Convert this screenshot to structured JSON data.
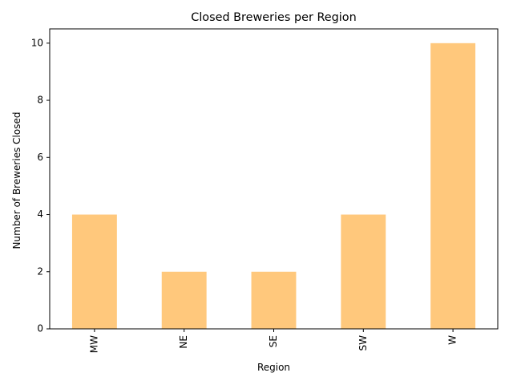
{
  "chart_data": {
    "type": "bar",
    "title": "Closed Breweries per Region",
    "xlabel": "Region",
    "ylabel": "Number of Breweries Closed",
    "categories": [
      "MW",
      "NE",
      "SE",
      "SW",
      "W"
    ],
    "values": [
      4,
      2,
      2,
      4,
      10
    ],
    "ylim": [
      0,
      10.5
    ],
    "yticks": [
      0,
      2,
      4,
      6,
      8,
      10
    ],
    "grid": false,
    "bar_color": "#ffc87c"
  }
}
